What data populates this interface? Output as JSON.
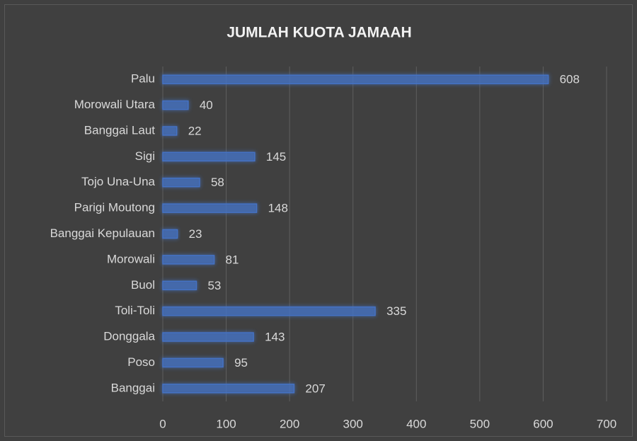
{
  "chart_data": {
    "type": "bar",
    "orientation": "horizontal",
    "title": "JUMLAH KUOTA JAMAAH",
    "categories": [
      "Palu",
      "Morowali Utara",
      "Banggai Laut",
      "Sigi",
      "Tojo Una-Una",
      "Parigi Moutong",
      "Banggai Kepulauan",
      "Morowali",
      "Buol",
      "Toli-Toli",
      "Donggala",
      "Poso",
      "Banggai"
    ],
    "values": [
      608,
      40,
      22,
      145,
      58,
      148,
      23,
      81,
      53,
      335,
      143,
      95,
      207
    ],
    "color": "#4472c4",
    "xlim": [
      0,
      700
    ],
    "xticks": [
      0,
      100,
      200,
      300,
      400,
      500,
      600,
      700
    ],
    "grid": true
  }
}
